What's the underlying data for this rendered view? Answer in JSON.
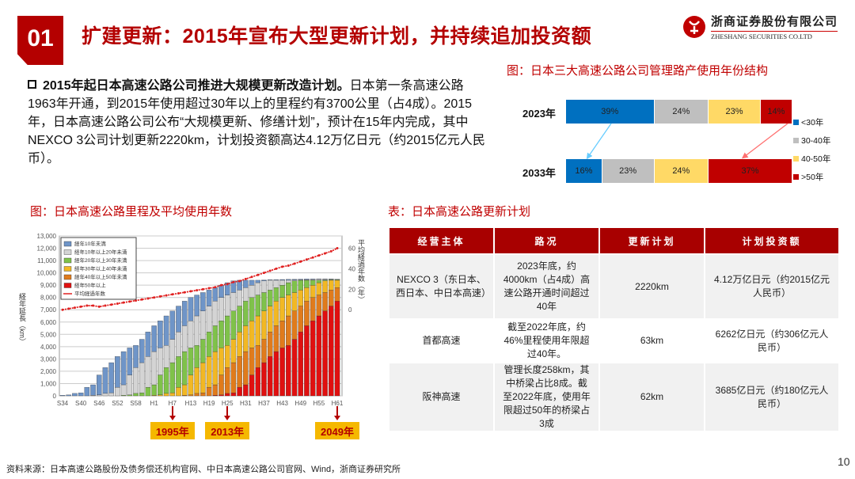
{
  "header": {
    "number": "01",
    "title": "扩建更新：2015年宣布大型更新计划，并持续追加投资额",
    "logo_cn": "浙商证券股份有限公司",
    "logo_en": "ZHESHANG SECURITIES CO.LTD"
  },
  "intro": {
    "bold": "2015年起日本高速公路公司推进大规模更新改造计划。",
    "text": "日本第一条高速公路1963年开通，到2015年使用超过30年以上的里程约有3700公里（占4成）。2015年，日本高速公路公司公布“大规模更新、修缮计划”，预计在15年内完成，其中NEXCO 3公司计划更新2220km，计划投资额高达4.12万亿日元（约2015亿元人民币）。"
  },
  "chart_data": [
    {
      "type": "bar",
      "title": "图：日本三大高速公路公司管理路产使用年份结构",
      "stacked": true,
      "orientation": "horizontal",
      "categories": [
        "2023年",
        "2033年"
      ],
      "series": [
        {
          "name": "<30年",
          "color": "#0070c0",
          "values": [
            39,
            16
          ]
        },
        {
          "name": "30-40年",
          "color": "#bfbfbf",
          "values": [
            24,
            23
          ]
        },
        {
          "name": "40-50年",
          "color": "#ffd966",
          "values": [
            23,
            24
          ]
        },
        {
          "name": ">50年",
          "color": "#c00000",
          "values": [
            14,
            37
          ]
        }
      ],
      "unit": "%"
    },
    {
      "type": "bar",
      "title": "图：日本高速公路里程及平均使用年数",
      "stacked": true,
      "ylabel": "経年延長（km）",
      "ylabel_right": "平均経過年数（年）",
      "ylim": [
        0,
        13000
      ],
      "ylim_right": [
        0,
        60
      ],
      "yticks": [
        "0",
        "1,000",
        "2,000",
        "3,000",
        "4,000",
        "5,000",
        "6,000",
        "7,000",
        "8,000",
        "9,000",
        "10,000",
        "11,000",
        "12,000",
        "13,000"
      ],
      "yticks_right": [
        "0",
        "20",
        "40",
        "60"
      ],
      "xticks": [
        "S34",
        "S40",
        "S46",
        "S52",
        "S58",
        "H1",
        "H7",
        "H13",
        "H19",
        "H25",
        "H31",
        "H37",
        "H43",
        "H49",
        "H55",
        "H61"
      ],
      "years": [
        1959,
        1961,
        1963,
        1965,
        1967,
        1969,
        1971,
        1973,
        1975,
        1977,
        1979,
        1981,
        1983,
        1985,
        1987,
        1989,
        1991,
        1993,
        1995,
        1997,
        1999,
        2001,
        2003,
        2005,
        2007,
        2009,
        2011,
        2013,
        2015,
        2017,
        2019,
        2021,
        2023,
        2025,
        2027,
        2029,
        2031,
        2033,
        2035,
        2037,
        2039,
        2041,
        2043,
        2045,
        2047,
        2049
      ],
      "total_km": [
        50,
        80,
        200,
        250,
        700,
        900,
        1700,
        2300,
        2700,
        3200,
        3600,
        3900,
        4100,
        4600,
        5200,
        5700,
        6100,
        6500,
        6900,
        7300,
        7700,
        8000,
        8200,
        8400,
        8600,
        8800,
        9000,
        9200,
        9350,
        9400,
        9400,
        9400,
        9400,
        9420,
        9440,
        9450,
        9460,
        9470,
        9480,
        9490,
        9500,
        9500,
        9500,
        9500,
        9500,
        9500
      ],
      "avg_age": [
        0,
        1,
        2,
        3,
        4,
        4,
        3,
        4,
        5,
        6,
        7,
        8,
        9,
        10,
        11,
        12,
        13,
        14,
        15,
        16,
        17,
        18,
        19,
        20,
        21,
        22,
        24,
        25,
        27,
        28,
        30,
        32,
        34,
        36,
        38,
        40,
        42,
        43,
        45,
        47,
        49,
        51,
        53,
        55,
        57,
        60
      ],
      "legend": [
        {
          "name": "経年10年未満",
          "color": "#6f95c8"
        },
        {
          "name": "経年10年以上20年未満",
          "color": "#d4d4d4"
        },
        {
          "name": "経年20年以上30年未満",
          "color": "#7fc24a"
        },
        {
          "name": "経年30年以上40年未満",
          "color": "#f2b824"
        },
        {
          "name": "経年40年以上50年未満",
          "color": "#e07b1c"
        },
        {
          "name": "経年50年以上",
          "color": "#e01010"
        },
        {
          "name": "平均経過年数",
          "color": "#e02020"
        }
      ],
      "annotations": [
        {
          "label": "1995年",
          "tick": "H7"
        },
        {
          "label": "2013年",
          "tick": "H25"
        },
        {
          "label": "2049年",
          "tick": "H61"
        }
      ]
    }
  ],
  "table": {
    "title": "表：日本高速公路更新计划",
    "headers": [
      "经营主体",
      "路况",
      "更新计划",
      "计划投资额"
    ],
    "rows": [
      [
        "NEXCO 3（东日本、西日本、中日本高速）",
        "2023年底，约4000km（占4成）高速公路开通时间超过40年",
        "2220km",
        "4.12万亿日元（约2015亿元人民币）"
      ],
      [
        "首都高速",
        "截至2022年底，约46%里程使用年限超过40年。",
        "63km",
        "6262亿日元（约306亿元人民币）"
      ],
      [
        "阪神高速",
        "管理长度258km，其中桥梁占比8成。截至2022年底，使用年限超过50年的桥梁占3成",
        "62km",
        "3685亿日元（约180亿元人民币）"
      ]
    ]
  },
  "footer": {
    "source": "资料来源：日本高速公路股份及债务偿还机构官网、中日本高速公路公司官网、Wind，浙商证券研究所",
    "page": "10"
  }
}
